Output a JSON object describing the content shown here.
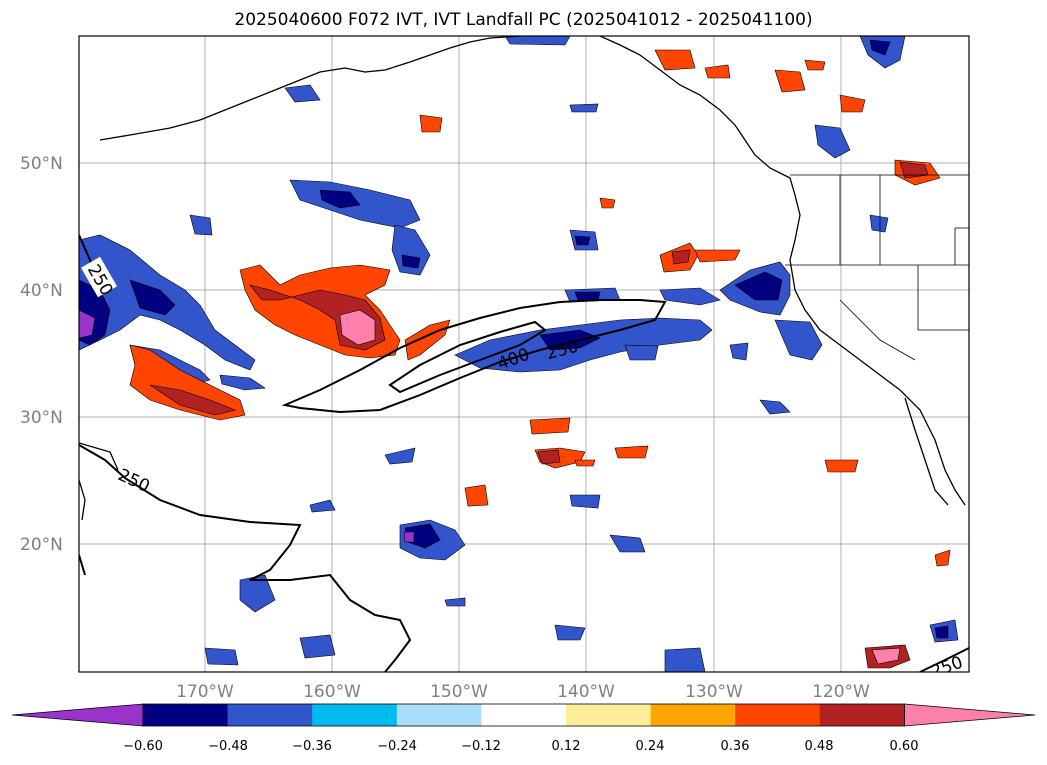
{
  "title": "2025040600 F072 IVT, IVT Landfall PC (2025041012 - 2025041100)",
  "map": {
    "lat_labels": [
      "50°N",
      "40°N",
      "30°N",
      "20°N"
    ],
    "lon_labels": [
      "170°W",
      "160°W",
      "150°W",
      "140°W",
      "130°W",
      "120°W"
    ],
    "contour_labels": [
      "250",
      "400",
      "250",
      "250",
      "250"
    ]
  },
  "colorbar": {
    "ticks": [
      "−0.60",
      "−0.48",
      "−0.36",
      "−0.24",
      "−0.12",
      "0.12",
      "0.24",
      "0.36",
      "0.48",
      "0.60"
    ],
    "colors": [
      "#9933cc",
      "#000080",
      "#3355cc",
      "#00bbee",
      "#aaddfa",
      "#ffffff",
      "#ffee99",
      "#ffa500",
      "#ff4500",
      "#b22222",
      "#ff80aa"
    ]
  },
  "colors": {
    "grid": "#b0b0b0",
    "axis_label": "#808080"
  }
}
